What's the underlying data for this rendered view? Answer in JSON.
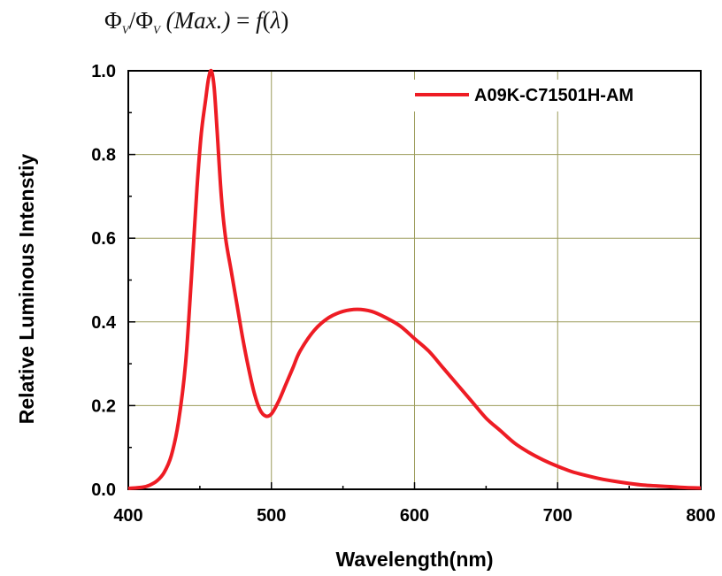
{
  "formula": {
    "phi": "Φ",
    "sub": "V",
    "slash": "/",
    "max_text": "(Max.)",
    "equals": "=",
    "func": "f",
    "lambda": "λ"
  },
  "colors": {
    "series": "#ee1c24",
    "grid": "#9c9c5a",
    "axis": "#000000",
    "background": "#ffffff"
  },
  "chart_data": {
    "type": "line",
    "title": "",
    "xlabel": "Wavelength(nm)",
    "ylabel": "Relative Luminous Intenstiy",
    "xlim": [
      400,
      800
    ],
    "ylim": [
      0,
      1.0
    ],
    "x_ticks": [
      "400",
      "500",
      "600",
      "700",
      "800"
    ],
    "y_ticks": [
      "0.0",
      "0.2",
      "0.4",
      "0.6",
      "0.8",
      "1.0"
    ],
    "grid": true,
    "legend_position": "top-right",
    "series": [
      {
        "name": "A09K-C71501H-AM",
        "x": [
          400,
          410,
          415,
          420,
          425,
          430,
          435,
          440,
          444,
          448,
          451,
          454,
          456,
          458,
          460,
          462,
          465,
          468,
          472,
          476,
          480,
          484,
          488,
          492,
          496,
          500,
          505,
          510,
          515,
          520,
          530,
          540,
          550,
          560,
          570,
          580,
          590,
          600,
          610,
          620,
          630,
          640,
          650,
          660,
          670,
          680,
          690,
          700,
          710,
          720,
          730,
          740,
          750,
          760,
          770,
          780,
          790,
          800
        ],
        "y": [
          0.002,
          0.005,
          0.01,
          0.02,
          0.04,
          0.08,
          0.16,
          0.3,
          0.5,
          0.72,
          0.85,
          0.93,
          0.98,
          1.0,
          0.96,
          0.86,
          0.7,
          0.6,
          0.52,
          0.44,
          0.36,
          0.29,
          0.23,
          0.19,
          0.175,
          0.18,
          0.21,
          0.25,
          0.29,
          0.33,
          0.38,
          0.41,
          0.425,
          0.43,
          0.425,
          0.41,
          0.39,
          0.36,
          0.33,
          0.29,
          0.25,
          0.21,
          0.17,
          0.14,
          0.11,
          0.088,
          0.07,
          0.055,
          0.042,
          0.033,
          0.025,
          0.019,
          0.014,
          0.01,
          0.008,
          0.006,
          0.004,
          0.003
        ]
      }
    ]
  }
}
